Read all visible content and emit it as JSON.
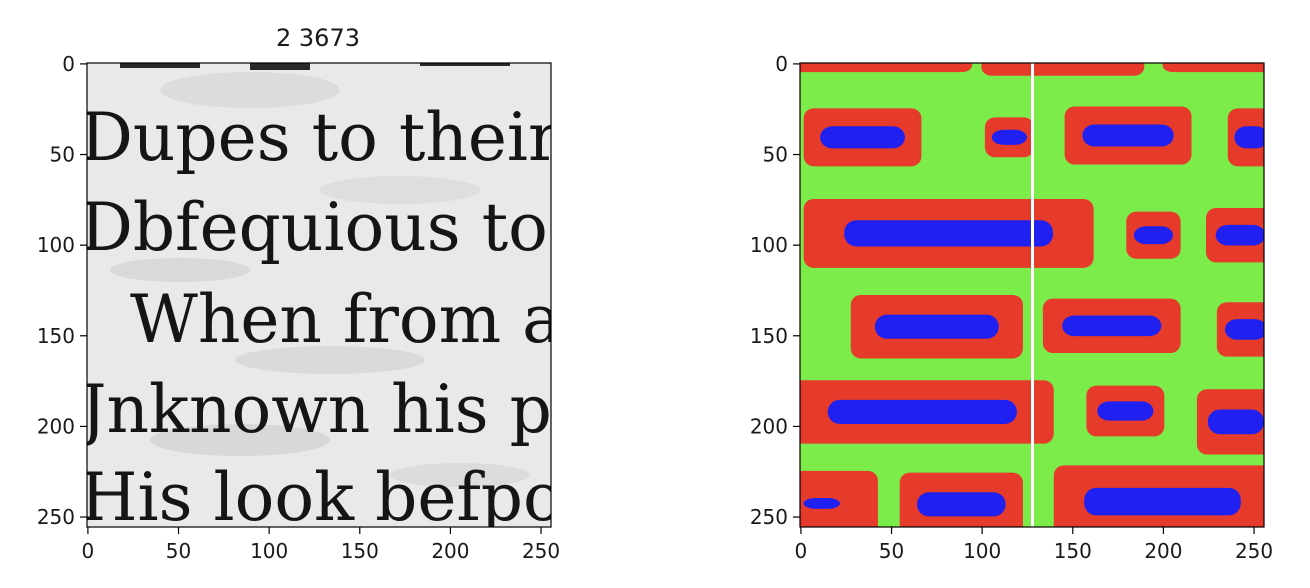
{
  "left_panel": {
    "title": "2 3673",
    "scan_lines": [
      "Dupes to their fa",
      "Dbfequious to th",
      "When from an",
      "Jnknown his pe",
      "His look befpoke"
    ],
    "x_ticks": [
      "0",
      "50",
      "100",
      "150",
      "200",
      "250"
    ],
    "y_ticks": [
      "0",
      "50",
      "100",
      "150",
      "200",
      "250"
    ]
  },
  "right_panel": {
    "x_ticks": [
      "0",
      "50",
      "100",
      "150",
      "200",
      "250"
    ],
    "y_ticks": [
      "0",
      "50",
      "100",
      "150",
      "200",
      "250"
    ],
    "colors": {
      "background": "#7cec4a",
      "border": "#e63a2a",
      "core": "#2020f0",
      "separator": "#ffffff"
    }
  }
}
